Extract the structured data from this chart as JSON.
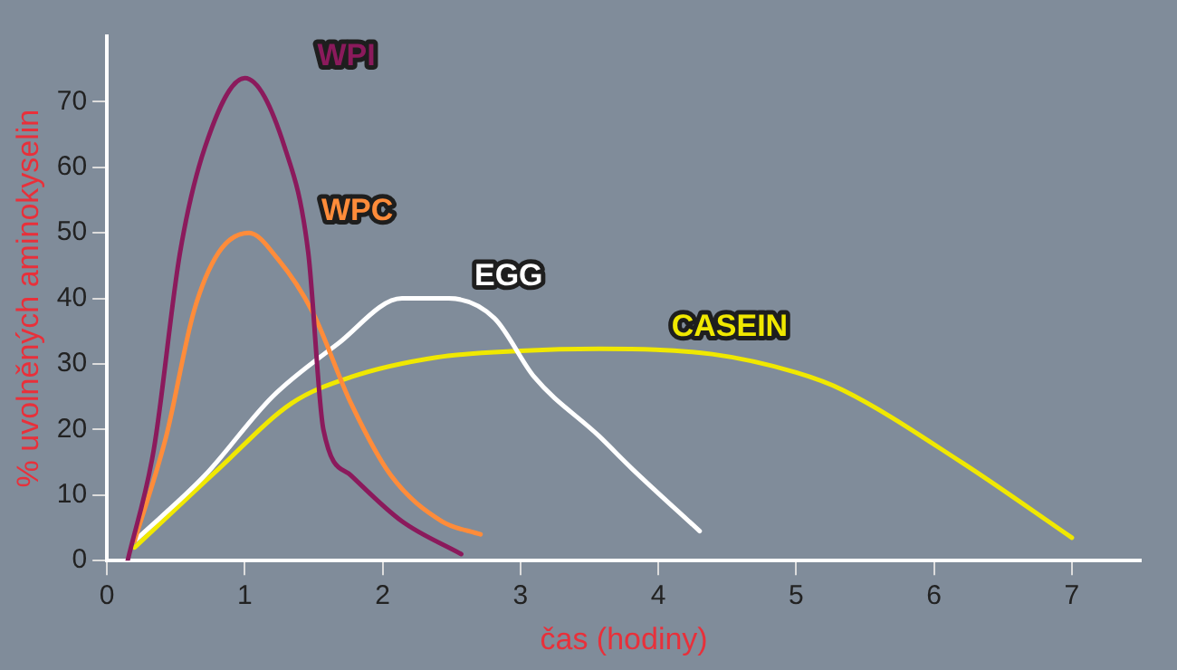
{
  "chart_data": {
    "type": "line",
    "xlabel": "čas (hodiny)",
    "ylabel": "% uvolněných aminokyselin",
    "xlim": [
      0,
      7.5
    ],
    "ylim": [
      0,
      80
    ],
    "xticks": [
      0,
      1,
      2,
      3,
      4,
      5,
      6,
      7
    ],
    "yticks": [
      0,
      10,
      20,
      30,
      40,
      50,
      60,
      70
    ],
    "grid": false,
    "legend": false,
    "marker": "none",
    "line_style": "solid",
    "series": [
      {
        "name": "WPI",
        "color": "#8b1a5c",
        "x": [
          0.15,
          0.34,
          0.53,
          0.71,
          1.0,
          1.29,
          1.46,
          1.57,
          1.77,
          2.14,
          2.57
        ],
        "values": [
          0,
          17,
          47,
          63,
          73.6,
          63,
          47,
          20,
          13,
          6,
          1
        ]
      },
      {
        "name": "WPC",
        "color": "#ff8c3a",
        "x": [
          0.2,
          0.43,
          0.63,
          0.81,
          1.03,
          1.24,
          1.49,
          1.77,
          2.06,
          2.43,
          2.71
        ],
        "values": [
          3,
          19,
          38,
          47,
          50,
          46,
          38,
          24,
          13,
          6,
          4
        ]
      },
      {
        "name": "EGG",
        "color": "#ffffff",
        "x": [
          0.2,
          0.71,
          1.2,
          1.67,
          2.14,
          2.48,
          2.81,
          3.1,
          3.57,
          3.81,
          4.3
        ],
        "values": [
          3,
          13,
          25,
          33,
          40,
          40,
          37,
          28,
          19,
          14,
          4.5
        ]
      },
      {
        "name": "CASEIN",
        "color": "#f0e800",
        "x": [
          0.2,
          0.81,
          1.34,
          1.77,
          2.39,
          3.0,
          3.57,
          4.39,
          5.0,
          5.34,
          6.2,
          7.0
        ],
        "values": [
          2,
          14,
          24,
          28,
          31,
          32,
          32.3,
          31.5,
          28.7,
          26,
          15,
          3.5
        ]
      }
    ]
  }
}
